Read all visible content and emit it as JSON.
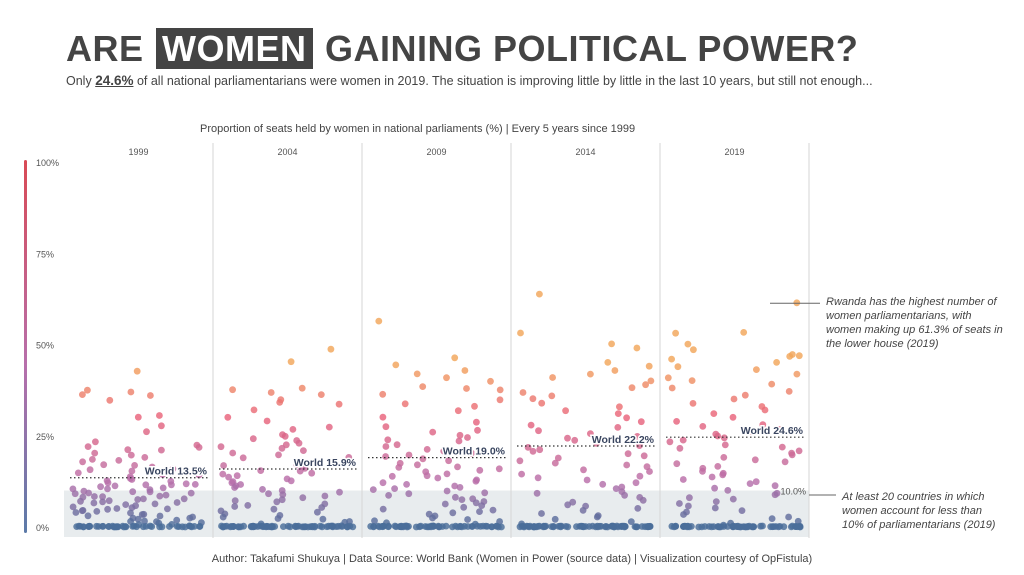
{
  "title": {
    "pre": "ARE",
    "highlight": "WOMEN",
    "post": "GAINING POLITICAL POWER?"
  },
  "subtitle": {
    "pre": "Only",
    "value": "24.6%",
    "post": "of all national parliamentarians were women in 2019. The situation is improving little by little in the last 10 years, but still not enough..."
  },
  "chart_title": "Proportion of seats held by women in national parliaments (%) | Every 5 years since 1999",
  "footer": "Author: Takafumi Shukuya | Data Source: World Bank (Women in Power (source data) | Visualization courtesy of OpFistula)",
  "annotations": {
    "rwanda": [
      "Rwanda has the highest number of",
      "women parliamentarians, with",
      "women making up 61.3% of seats in",
      "the lower house (2019)"
    ],
    "low": [
      "At least 20 countries in which",
      "women account for less than",
      "10% of parliamentarians (2019)"
    ]
  },
  "threshold_label": "10.0%",
  "colors": {
    "low": "#4a6e9a",
    "mid": "#b76fab",
    "high": "#e9637b",
    "top": "#f2a65a",
    "band": "#e8ecee",
    "axis_bar_top": "#d94a55",
    "axis_bar_bottom": "#5b7aa8"
  },
  "chart_data": {
    "type": "scatter",
    "title": "Proportion of seats held by women in national parliaments (%) | Every 5 years since 1999",
    "ylim": [
      0,
      100
    ],
    "yticks": [
      "0%",
      "25%",
      "50%",
      "75%",
      "100%"
    ],
    "ytick_values": [
      0,
      25,
      50,
      75,
      100
    ],
    "threshold": 10,
    "panels": [
      {
        "year": "1999",
        "world_label": "World 13.5%",
        "world": 13.5,
        "points": [
          42.7,
          37.4,
          37.0,
          36.4,
          36.0,
          34.8,
          30.4,
          30.0,
          27.6,
          26.1,
          23.2,
          22.6,
          22.0,
          21.7,
          21.2,
          21.0,
          20.4,
          19.6,
          19.0,
          18.6,
          18.2,
          18.0,
          17.2,
          16.8,
          16.4,
          16.0,
          15.6,
          15.2,
          14.8,
          14.4,
          14.2,
          13.8,
          13.4,
          13.0,
          12.6,
          12.4,
          12.2,
          12.0,
          11.8,
          11.6,
          11.4,
          11.2,
          11.0,
          10.8,
          10.6,
          10.4,
          10.2,
          10.0,
          9.8,
          9.6,
          9.4,
          9.2,
          9.0,
          8.8,
          8.6,
          8.4,
          8.2,
          8.0,
          7.8,
          7.6,
          7.4,
          7.2,
          7.0,
          6.8,
          6.6,
          6.4,
          6.2,
          6.0,
          5.8,
          5.6,
          5.4,
          5.2,
          5.0,
          4.8,
          4.6,
          4.4,
          4.2,
          4.0,
          3.8,
          3.6,
          3.4,
          3.2,
          3.0,
          2.8,
          2.6,
          2.4,
          2.2,
          2.0,
          1.8,
          1.6,
          1.4,
          1.2,
          1.0,
          0.8,
          0.6,
          0.4,
          0.2,
          0.0,
          0.0,
          0.0,
          0.0,
          0.0,
          0.0,
          0.0,
          0.0,
          0.0,
          0.0,
          0.0,
          0.0,
          0.0,
          0.0,
          0.0,
          0.0,
          0.0,
          0.0,
          0.0,
          0.0,
          0.0,
          0.0,
          0.0,
          0.0,
          0.0,
          0.0,
          0.0,
          0.0,
          0.0,
          0.0,
          0.0,
          0.0,
          0.0,
          0.0,
          0.0,
          0.0,
          0.0,
          0.0,
          0.0,
          0.0,
          0.0,
          0.0,
          0.0,
          0.0,
          0.0
        ]
      },
      {
        "year": "2004",
        "world_label": "World 15.9%",
        "world": 15.9,
        "points": [
          48.8,
          45.3,
          38.0,
          37.5,
          37.0,
          36.4,
          35.0,
          34.0,
          33.6,
          32.0,
          30.0,
          29.2,
          27.4,
          26.6,
          25.2,
          24.8,
          24.2,
          23.6,
          23.0,
          22.4,
          22.0,
          21.4,
          20.8,
          20.2,
          19.8,
          19.2,
          18.8,
          18.2,
          17.8,
          17.2,
          16.8,
          16.4,
          16.0,
          15.6,
          15.2,
          14.8,
          14.4,
          14.0,
          13.6,
          13.2,
          12.8,
          12.4,
          12.0,
          11.6,
          11.2,
          10.8,
          10.4,
          10.0,
          9.6,
          9.2,
          8.8,
          8.4,
          8.0,
          7.6,
          7.2,
          6.8,
          6.4,
          6.0,
          5.6,
          5.2,
          4.8,
          4.4,
          4.0,
          3.6,
          3.2,
          2.8,
          2.4,
          2.0,
          1.6,
          1.2,
          0.8,
          0.4,
          0.0,
          0.0,
          0.0,
          0.0,
          0.0,
          0.0,
          0.0,
          0.0,
          0.0,
          0.0,
          0.0,
          0.0,
          0.0,
          0.0,
          0.0,
          0.0,
          0.0,
          0.0,
          0.0,
          0.0,
          0.0,
          0.0,
          0.0,
          0.0,
          0.0,
          0.0,
          0.0,
          0.0,
          0.0,
          0.0,
          0.0,
          0.0,
          0.0,
          0.0,
          0.0,
          0.0,
          0.0,
          0.0,
          0.0,
          0.0,
          0.0,
          0.0,
          0.0,
          0.0,
          0.0,
          0.0,
          0.0,
          0.0,
          0.0,
          0.0,
          0.0,
          0.0,
          0.0,
          0.0,
          0.0,
          0.0,
          0.0,
          0.0,
          0.0,
          0.0,
          0.0,
          0.0,
          0.0,
          0.0,
          0.0,
          0.0,
          0.0
        ]
      },
      {
        "year": "2009",
        "world_label": "World 19.0%",
        "world": 19.0,
        "points": [
          56.3,
          46.4,
          44.5,
          43.0,
          42.0,
          41.0,
          40.0,
          38.6,
          38.0,
          37.4,
          36.4,
          35.0,
          33.6,
          33.0,
          32.0,
          30.0,
          28.6,
          27.6,
          26.6,
          26.0,
          25.0,
          24.4,
          24.0,
          23.4,
          22.6,
          22.0,
          21.4,
          20.8,
          20.2,
          19.6,
          19.2,
          18.6,
          18.0,
          17.6,
          17.0,
          16.6,
          16.2,
          15.8,
          15.4,
          15.0,
          14.6,
          14.2,
          13.8,
          13.4,
          13.0,
          12.6,
          12.2,
          11.8,
          11.4,
          11.0,
          10.6,
          10.2,
          9.8,
          9.4,
          9.0,
          8.6,
          8.2,
          7.8,
          7.4,
          7.0,
          6.6,
          6.2,
          5.8,
          5.4,
          5.0,
          4.6,
          4.2,
          3.8,
          3.4,
          3.0,
          2.6,
          2.2,
          1.8,
          1.4,
          1.0,
          0.6,
          0.2,
          0.0,
          0.0,
          0.0,
          0.0,
          0.0,
          0.0,
          0.0,
          0.0,
          0.0,
          0.0,
          0.0,
          0.0,
          0.0,
          0.0,
          0.0,
          0.0,
          0.0,
          0.0,
          0.0,
          0.0,
          0.0,
          0.0,
          0.0,
          0.0,
          0.0,
          0.0,
          0.0,
          0.0,
          0.0,
          0.0,
          0.0,
          0.0,
          0.0,
          0.0,
          0.0,
          0.0,
          0.0,
          0.0,
          0.0,
          0.0,
          0.0,
          0.0,
          0.0,
          0.0,
          0.0,
          0.0,
          0.0,
          0.0,
          0.0,
          0.0,
          0.0,
          0.0,
          0.0,
          0.0,
          0.0,
          0.0,
          0.0,
          0.0,
          0.0,
          0.0,
          0.0,
          0.0,
          0.0
        ]
      },
      {
        "year": "2014",
        "world_label": "World 22.2%",
        "world": 22.2,
        "points": [
          63.8,
          53.1,
          50.0,
          48.9,
          45.0,
          44.0,
          43.0,
          42.0,
          41.0,
          40.0,
          39.0,
          38.0,
          37.0,
          36.0,
          35.0,
          34.0,
          33.0,
          32.0,
          31.0,
          30.0,
          29.0,
          28.0,
          27.2,
          26.4,
          25.6,
          24.8,
          24.2,
          23.6,
          23.0,
          22.4,
          21.8,
          21.2,
          20.6,
          20.0,
          19.4,
          18.8,
          18.2,
          17.6,
          17.0,
          16.4,
          15.8,
          15.2,
          14.6,
          14.0,
          13.4,
          12.8,
          12.2,
          11.6,
          11.0,
          10.4,
          9.8,
          9.2,
          8.6,
          8.0,
          7.4,
          6.8,
          6.2,
          5.6,
          5.0,
          4.4,
          3.8,
          3.2,
          2.6,
          2.0,
          1.4,
          0.8,
          0.2,
          0.0,
          0.0,
          0.0,
          0.0,
          0.0,
          0.0,
          0.0,
          0.0,
          0.0,
          0.0,
          0.0,
          0.0,
          0.0,
          0.0,
          0.0,
          0.0,
          0.0,
          0.0,
          0.0,
          0.0,
          0.0,
          0.0,
          0.0,
          0.0,
          0.0,
          0.0,
          0.0,
          0.0,
          0.0,
          0.0,
          0.0,
          0.0,
          0.0,
          0.0,
          0.0,
          0.0,
          0.0,
          0.0,
          0.0,
          0.0,
          0.0,
          0.0,
          0.0,
          0.0,
          0.0,
          0.0,
          0.0,
          0.0,
          0.0,
          0.0,
          0.0,
          0.0,
          0.0,
          0.0,
          0.0,
          0.0,
          0.0,
          0.0,
          0.0,
          0.0,
          0.0,
          0.0,
          0.0,
          0.0,
          0.0,
          0.0,
          0.0,
          0.0,
          0.0,
          0.0,
          0.0,
          0.0,
          0.0,
          0.0,
          0.0,
          0.0
        ]
      },
      {
        "year": "2019",
        "world_label": "World 24.6%",
        "world": 24.6,
        "points": [
          61.3,
          53.2,
          53.0,
          50.0,
          48.5,
          47.4,
          47.0,
          46.8,
          46.0,
          45.0,
          44.0,
          43.0,
          42.0,
          41.0,
          40.0,
          39.0,
          38.0,
          37.0,
          36.0,
          35.0,
          34.0,
          33.0,
          32.0,
          31.0,
          30.0,
          29.0,
          28.0,
          27.4,
          26.8,
          26.2,
          25.6,
          25.0,
          24.4,
          23.8,
          23.2,
          22.6,
          22.0,
          21.4,
          20.8,
          20.2,
          19.6,
          19.0,
          18.4,
          17.8,
          17.2,
          16.6,
          16.0,
          15.4,
          14.8,
          14.2,
          13.6,
          13.0,
          12.4,
          11.8,
          11.2,
          10.6,
          10.0,
          9.4,
          8.8,
          8.2,
          7.6,
          7.0,
          6.4,
          5.8,
          5.2,
          4.6,
          4.0,
          3.4,
          2.8,
          2.2,
          1.6,
          1.0,
          0.4,
          0.0,
          0.0,
          0.0,
          0.0,
          0.0,
          0.0,
          0.0,
          0.0,
          0.0,
          0.0,
          0.0,
          0.0,
          0.0,
          0.0,
          0.0,
          0.0,
          0.0,
          0.0,
          0.0,
          0.0,
          0.0,
          0.0,
          0.0,
          0.0,
          0.0,
          0.0,
          0.0,
          0.0,
          0.0,
          0.0,
          0.0,
          0.0,
          0.0,
          0.0,
          0.0,
          0.0,
          0.0,
          0.0,
          0.0,
          0.0,
          0.0,
          0.0,
          0.0,
          0.0,
          0.0,
          0.0,
          0.0,
          0.0,
          0.0,
          0.0,
          0.0,
          0.0,
          0.0,
          0.0,
          0.0,
          0.0,
          0.0,
          0.0,
          0.0,
          0.0,
          0.0,
          0.0,
          0.0,
          0.0
        ]
      }
    ]
  }
}
